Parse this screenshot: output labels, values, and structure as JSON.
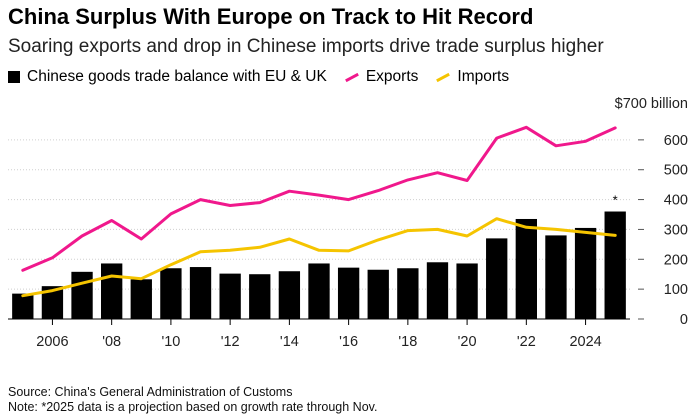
{
  "header": {
    "title": "China Surplus With Europe on Track to Hit Record",
    "subtitle": "Soaring exports and drop in Chinese imports drive trade surplus higher"
  },
  "legend": {
    "balance": "Chinese goods trade balance with EU & UK",
    "exports": "Exports",
    "imports": "Imports"
  },
  "footer": {
    "source": "Source: China's General Administration of Customs",
    "note": "Note: *2025 data is a projection based on growth rate through Nov."
  },
  "colors": {
    "bars": "#000000",
    "exports": "#f0188c",
    "imports": "#f5c400",
    "grid": "#cfcfcf",
    "axis_text": "#222222"
  },
  "chart_data": {
    "type": "bar",
    "x": [
      2005,
      2006,
      2007,
      2008,
      2009,
      2010,
      2011,
      2012,
      2013,
      2014,
      2015,
      2016,
      2017,
      2018,
      2019,
      2020,
      2021,
      2022,
      2023,
      2024,
      2025
    ],
    "series": [
      {
        "name": "Chinese goods trade balance with EU & UK",
        "type": "bar",
        "values": [
          85,
          110,
          158,
          186,
          133,
          170,
          174,
          152,
          150,
          160,
          186,
          172,
          165,
          170,
          190,
          186,
          270,
          335,
          280,
          305,
          360
        ]
      },
      {
        "name": "Exports",
        "type": "line",
        "values": [
          163,
          205,
          278,
          330,
          268,
          352,
          400,
          380,
          390,
          428,
          415,
          400,
          430,
          466,
          490,
          464,
          606,
          642,
          580,
          595,
          640
        ]
      },
      {
        "name": "Imports",
        "type": "line",
        "values": [
          78,
          95,
          120,
          144,
          135,
          182,
          225,
          230,
          240,
          268,
          230,
          228,
          265,
          296,
          300,
          278,
          336,
          307,
          300,
          290,
          280
        ]
      }
    ],
    "ylim": [
      0,
      700
    ],
    "yticks": [
      0,
      100,
      200,
      300,
      400,
      500,
      600
    ],
    "ytick_labels": [
      "0",
      "100",
      "200",
      "300",
      "400",
      "500",
      "600"
    ],
    "ytop_label": "$700 billion",
    "xticks": [
      2006,
      2008,
      2010,
      2012,
      2014,
      2016,
      2018,
      2020,
      2022,
      2024
    ],
    "xtick_labels": [
      "2006",
      "'08",
      "'10",
      "'12",
      "'14",
      "'16",
      "'18",
      "'20",
      "'22",
      "2024"
    ],
    "annotation": {
      "x": 2025,
      "text": "*"
    },
    "grid": true,
    "legend_position": "top-left"
  }
}
